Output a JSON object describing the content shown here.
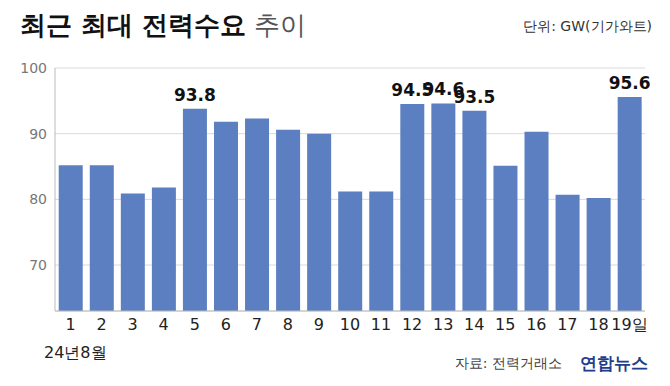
{
  "chart_data": {
    "type": "bar",
    "title": "최근 최대 전력수요 추이",
    "unit_note": "단위: GW(기가와트)",
    "categories": [
      "1",
      "2",
      "3",
      "4",
      "5",
      "6",
      "7",
      "8",
      "9",
      "10",
      "11",
      "12",
      "13",
      "14",
      "15",
      "16",
      "17",
      "18",
      "19일"
    ],
    "xlabel": "24년8월",
    "values": [
      85.2,
      85.2,
      80.9,
      81.8,
      93.8,
      91.8,
      92.3,
      90.6,
      90.0,
      81.2,
      81.2,
      94.5,
      94.6,
      93.5,
      85.1,
      90.3,
      80.7,
      80.2,
      95.6
    ],
    "value_labels": [
      null,
      null,
      null,
      null,
      "93.8",
      null,
      null,
      null,
      null,
      null,
      null,
      "94.5",
      "94.6",
      "93.5",
      null,
      null,
      null,
      null,
      "95.6"
    ],
    "data_labels": true,
    "color": "#5b7fc0",
    "ylim": [
      63,
      100
    ],
    "yticks": [
      70,
      80,
      90,
      100
    ],
    "grid": true,
    "source": "자료: 전력거래소",
    "credit": "연합뉴스"
  }
}
